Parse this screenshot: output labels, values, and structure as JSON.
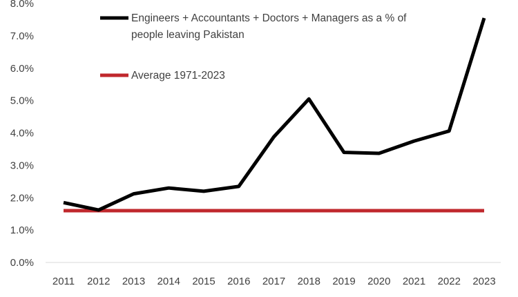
{
  "chart_data": {
    "type": "line",
    "title": "",
    "xlabel": "",
    "ylabel": "",
    "categories": [
      "2011",
      "2012",
      "2013",
      "2014",
      "2015",
      "2016",
      "2017",
      "2018",
      "2019",
      "2020",
      "2021",
      "2022",
      "2023"
    ],
    "y_ticks": [
      "0.0%",
      "1.0%",
      "2.0%",
      "3.0%",
      "4.0%",
      "5.0%",
      "6.0%",
      "7.0%",
      "8.0%"
    ],
    "ylim": [
      0,
      8
    ],
    "grid": false,
    "legend_position": "top-center",
    "series": [
      {
        "name": "Engineers + Accountants + Doctors + Managers as a % of people leaving Pakistan",
        "legend_lines": [
          "Engineers + Accountants + Doctors + Managers as a % of",
          "people leaving Pakistan"
        ],
        "color": "#000000",
        "values": [
          1.85,
          1.62,
          2.12,
          2.3,
          2.2,
          2.35,
          3.88,
          5.05,
          3.4,
          3.37,
          3.75,
          4.06,
          7.55
        ]
      },
      {
        "name": "Average 1971-2023",
        "legend_lines": [
          "Average 1971-2023"
        ],
        "color": "#c0282d",
        "values": [
          1.6,
          1.6,
          1.6,
          1.6,
          1.6,
          1.6,
          1.6,
          1.6,
          1.6,
          1.6,
          1.6,
          1.6,
          1.6
        ]
      }
    ]
  }
}
